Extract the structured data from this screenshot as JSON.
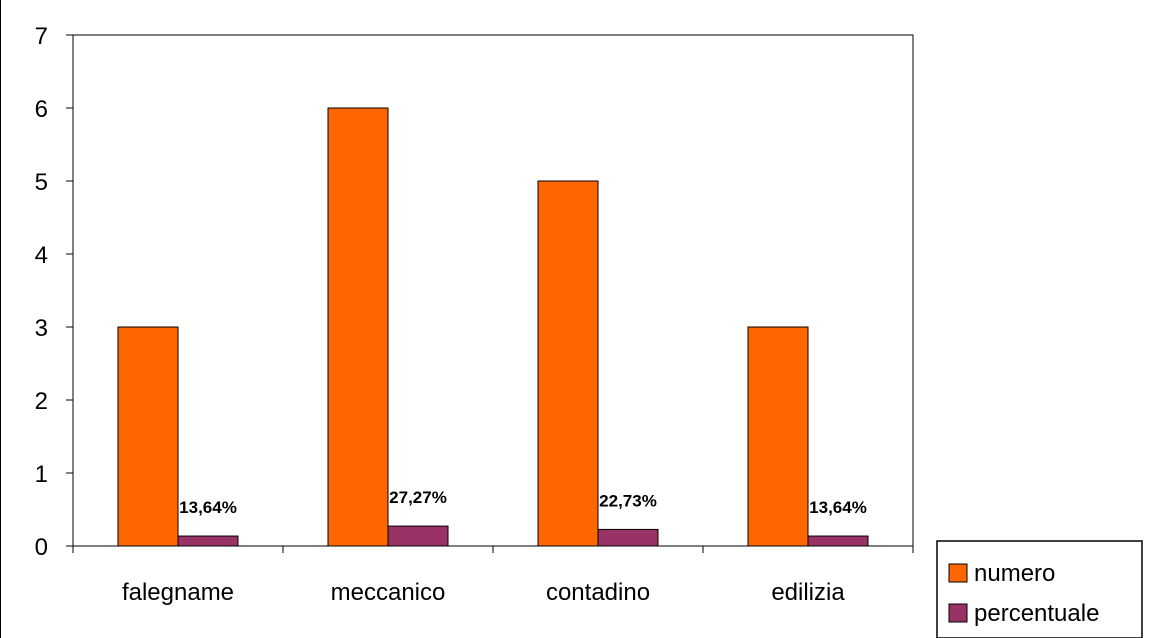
{
  "chart_data": {
    "type": "bar",
    "title": "",
    "xlabel": "",
    "ylabel": "",
    "categories": [
      "falegname",
      "meccanico",
      "contadino",
      "edilizia"
    ],
    "ylim": [
      0,
      7
    ],
    "yticks": [
      "0",
      "1",
      "2",
      "3",
      "4",
      "5",
      "6",
      "7"
    ],
    "grid": false,
    "legend_position": "bottom-right",
    "series": [
      {
        "name": "numero",
        "color": "#FF6600",
        "values": [
          3,
          6,
          5,
          3
        ],
        "labels": [
          "",
          "",
          "",
          ""
        ]
      },
      {
        "name": "percentuale",
        "color": "#993366",
        "values": [
          0.1364,
          0.2727,
          0.2273,
          0.1364
        ],
        "labels": [
          "13,64%",
          "27,27%",
          "22,73%",
          "13,64%"
        ]
      }
    ]
  }
}
